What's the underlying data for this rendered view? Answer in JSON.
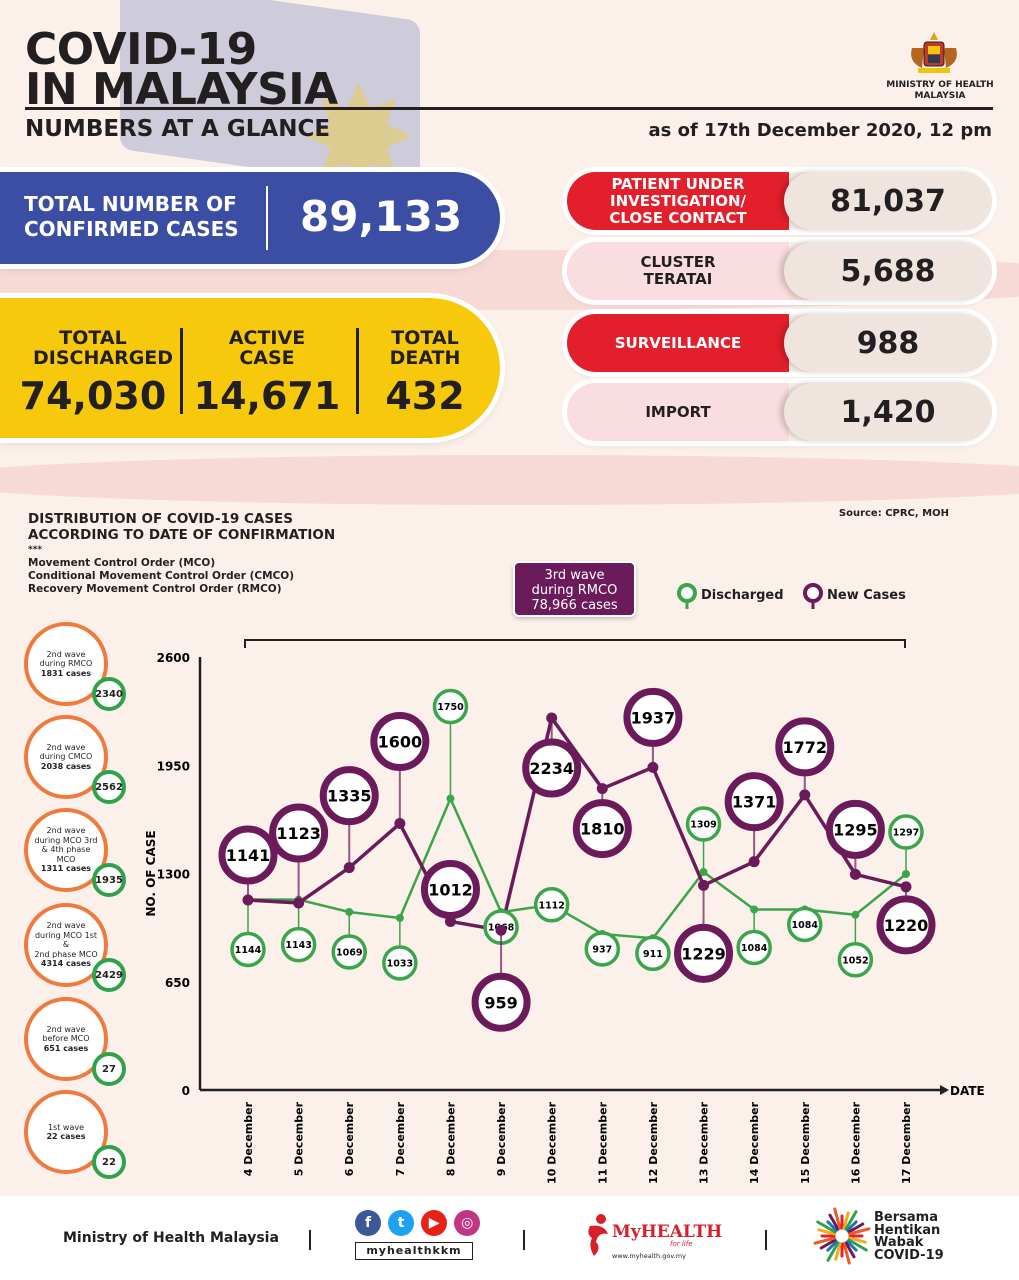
{
  "header": {
    "title_line1": "COVID-19",
    "title_line2": "IN MALAYSIA",
    "subtitle": "NUMBERS AT A GLANCE",
    "as_of": "as of 17th December 2020, 12 pm",
    "ministry_line1": "MINISTRY OF HEALTH",
    "ministry_line2": "MALAYSIA"
  },
  "totals": {
    "confirmed_label": "TOTAL NUMBER OF CONFIRMED CASES",
    "confirmed_value": "89,133",
    "discharged_label": "TOTAL DISCHARGED",
    "discharged_value": "74,030",
    "active_label": "ACTIVE CASE",
    "active_value": "14,671",
    "death_label": "TOTAL DEATH",
    "death_value": "432"
  },
  "categories": [
    {
      "label": "PATIENT UNDER INVESTIGATION/ CLOSE CONTACT",
      "value": "81,037",
      "style": "red"
    },
    {
      "label": "CLUSTER TERATAI",
      "value": "5,688",
      "style": "pink"
    },
    {
      "label": "SURVEILLANCE",
      "value": "988",
      "style": "red"
    },
    {
      "label": "IMPORT",
      "value": "1,420",
      "style": "pink"
    }
  ],
  "distribution": {
    "title_line1": "DISTRIBUTION OF COVID-19 CASES",
    "title_line2": "ACCORDING TO DATE OF CONFIRMATION",
    "dots": "***",
    "mco_line1": "Movement Control Order (MCO)",
    "mco_line2": "Conditional Movement Control Order (CMCO)",
    "mco_line3": "Recovery Movement Control Order (RMCO)",
    "source": "Source: CPRC, MOH",
    "wave3_line1": "3rd wave",
    "wave3_line2": "during RMCO",
    "wave3_line3": "78,966 cases",
    "legend_discharged": "Discharged",
    "legend_new": "New Cases"
  },
  "waves": [
    {
      "line1": "2nd wave",
      "line2": "during RMCO",
      "line3": "1831 cases",
      "line4": "",
      "badge": "2340"
    },
    {
      "line1": "2nd wave",
      "line2": "during CMCO",
      "line3": "2038 cases",
      "line4": "",
      "badge": "2562"
    },
    {
      "line1": "2nd wave",
      "line2": "during MCO 3rd",
      "line3": "& 4th phase MCO",
      "line4": "1311 cases",
      "badge": "1935"
    },
    {
      "line1": "2nd wave",
      "line2": "during MCO 1st &",
      "line3": "2nd phase MCO",
      "line4": "4314 cases",
      "badge": "2429"
    },
    {
      "line1": "2nd wave",
      "line2": "before MCO",
      "line3": "651 cases",
      "line4": "",
      "badge": "27"
    },
    {
      "line1": "1st wave",
      "line2": "22 cases",
      "line3": "",
      "line4": "",
      "badge": "22"
    }
  ],
  "chart_data": {
    "type": "line",
    "xlabel": "DATE",
    "ylabel": "NO. OF CASE",
    "ylim": [
      0,
      2600
    ],
    "yticks": [
      0,
      650,
      1300,
      1950,
      2600
    ],
    "categories": [
      "4 December",
      "5 December",
      "6 December",
      "7 December",
      "8 December",
      "9 December",
      "10 December",
      "11 December",
      "12 December",
      "13 December",
      "14 December",
      "15 December",
      "16 December",
      "17 December"
    ],
    "series": [
      {
        "name": "Discharged",
        "color": "#3aa54a",
        "values": [
          1144,
          1143,
          1069,
          1033,
          1750,
          1068,
          1112,
          937,
          911,
          1309,
          1084,
          1084,
          1052,
          1297
        ]
      },
      {
        "name": "New Cases",
        "color": "#6b1a5a",
        "values": [
          1141,
          1123,
          1335,
          1600,
          1012,
          959,
          2234,
          1810,
          1937,
          1229,
          1371,
          1772,
          1295,
          1220
        ]
      }
    ]
  },
  "footer": {
    "ministry": "Ministry of Health Malaysia",
    "handle": "myhealthkkm",
    "myhealth": "MyHEALTH",
    "myhealth_tag": "for life",
    "myhealth_url": "www.myhealth.gov.my",
    "bersama1": "Bersama",
    "bersama2": "Hentikan",
    "bersama3": "Wabak",
    "bersama4": "COVID-19"
  }
}
